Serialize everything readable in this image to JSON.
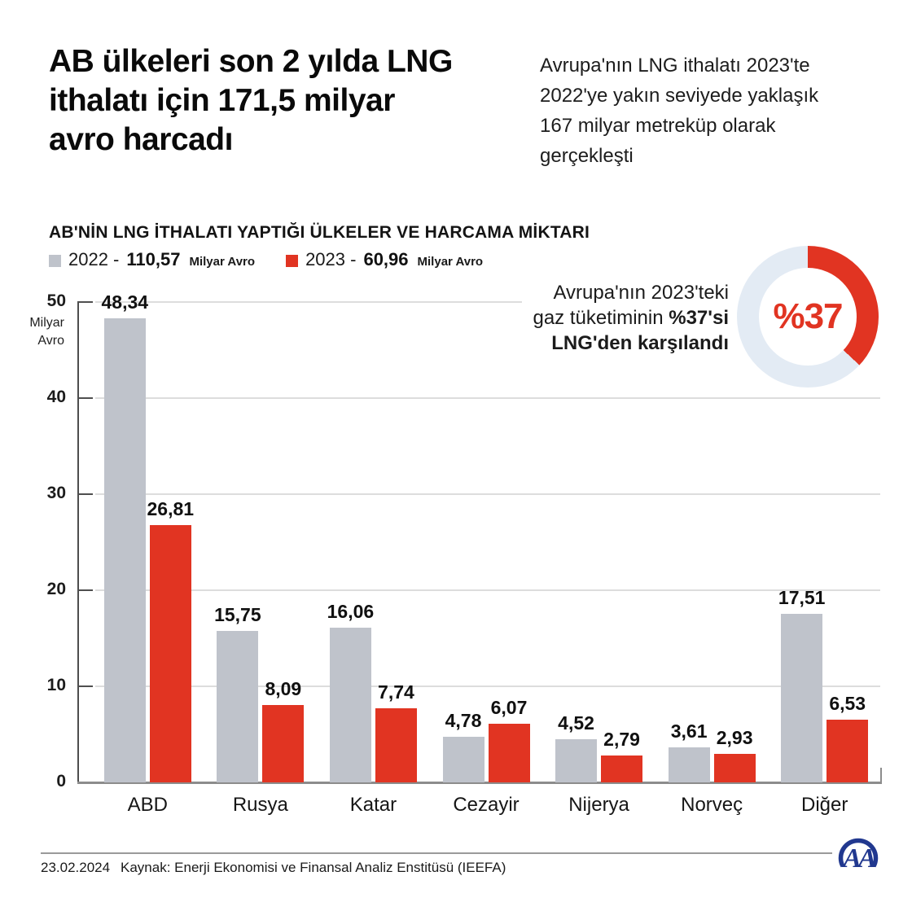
{
  "header": {
    "title_lines": [
      "AB ülkeleri son 2 yılda LNG",
      "ithalatı için 171,5 milyar",
      "avro harcadı"
    ],
    "intro_lines": [
      "Avrupa'nın LNG ithalatı 2023'te",
      "2022'ye yakın seviyede yaklaşık",
      "167 milyar metreküp olarak",
      "gerçekleşti"
    ]
  },
  "chart_data": {
    "type": "bar",
    "title": "AB'NİN LNG İTHALATI YAPTIĞI ÜLKELER VE HARCAMA MİKTARI",
    "categories": [
      "ABD",
      "Rusya",
      "Katar",
      "Cezayir",
      "Nijerya",
      "Norveç",
      "Diğer"
    ],
    "series": [
      {
        "name": "2022",
        "legend_prefix": "2022 -",
        "total_label": "110,57",
        "unit": "Milyar Avro",
        "color": "#bfc3cb",
        "values": [
          48.34,
          15.75,
          16.06,
          4.78,
          4.52,
          3.61,
          17.51
        ],
        "labels": [
          "48,34",
          "15,75",
          "16,06",
          "4,78",
          "4,52",
          "3,61",
          "17,51"
        ]
      },
      {
        "name": "2023",
        "legend_prefix": "2023 -",
        "total_label": "60,96",
        "unit": "Milyar Avro",
        "color": "#e13422",
        "values": [
          26.81,
          8.09,
          7.74,
          6.07,
          2.79,
          2.93,
          6.53
        ],
        "labels": [
          "26,81",
          "8,09",
          "7,74",
          "6,07",
          "2,79",
          "2,93",
          "6,53"
        ]
      }
    ],
    "ylabel": "Milyar Avro",
    "ylabel_line1": "Milyar",
    "ylabel_line2": "Avro",
    "yticks": [
      0,
      10,
      20,
      30,
      40,
      50
    ],
    "ylim": [
      0,
      50
    ],
    "grid": true,
    "legend_position": "top-left"
  },
  "donut": {
    "percent": 37,
    "value_label": "%37",
    "caption_line1": "Avrupa'nın 2023'teki",
    "caption_line2_regular": "gaz tüketiminin ",
    "caption_line2_bold": "%37'si",
    "caption_line3": "LNG'den karşılandı",
    "arc_color": "#e13422",
    "ring_color": "#e3ebf4"
  },
  "footer": {
    "date": "23.02.2024",
    "source": "Kaynak: Enerji Ekonomisi ve Finansal Analiz Enstitüsü (IEEFA)",
    "logo_letters": "AA",
    "logo_color": "#21388f"
  }
}
